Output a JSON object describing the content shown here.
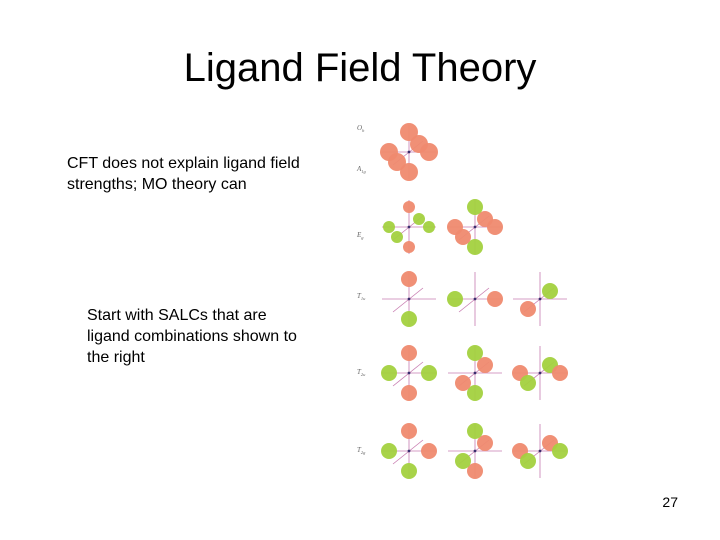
{
  "slide": {
    "title": "Ligand Field Theory",
    "bullets": [
      "CFT does not explain ligand field strengths; MO theory can",
      "Start with SALCs that are ligand combinations shown to the right"
    ],
    "page_number": "27"
  },
  "diagram": {
    "row_labels": [
      {
        "main": "O",
        "sub": "h"
      },
      {
        "main": "A",
        "sub": "1g"
      },
      {
        "main": "E",
        "sub": "g"
      },
      {
        "main": "T",
        "sub": "1u"
      },
      {
        "main": "T",
        "sub": "2u"
      },
      {
        "main": "T",
        "sub": "2g"
      }
    ],
    "colors": {
      "positive_lobe": "#ef8a6f",
      "negative_lobe": "#a3d13f",
      "axis": "#c77bb0"
    }
  }
}
